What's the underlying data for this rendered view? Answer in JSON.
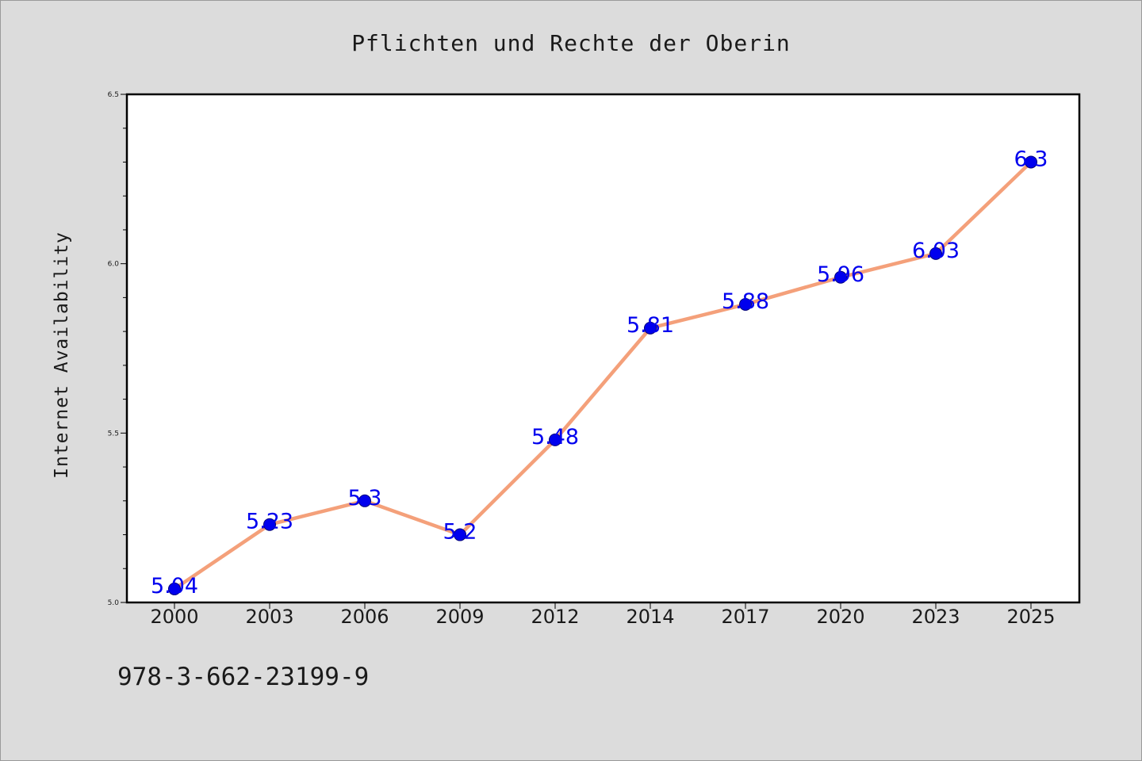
{
  "chart_data": {
    "type": "line",
    "title": "Pflichten und Rechte der Oberin",
    "xlabel": "",
    "ylabel": "Internet Availability",
    "categories": [
      "2000",
      "2003",
      "2006",
      "2009",
      "2012",
      "2014",
      "2017",
      "2020",
      "2023",
      "2025"
    ],
    "series": [
      {
        "values": [
          5.04,
          5.23,
          5.3,
          5.2,
          5.48,
          5.81,
          5.88,
          5.96,
          6.03,
          6.3
        ],
        "data_labels": [
          "5.04",
          "5.23",
          "5.3",
          "5.2",
          "5.48",
          "5.81",
          "5.88",
          "5.96",
          "6.03",
          "6.3"
        ],
        "line_color": "#f4a07a",
        "marker_color": "#0000ee"
      }
    ],
    "ylim": [
      5.0,
      6.5
    ],
    "yticks": [
      "5.0",
      "5.5",
      "6.0",
      "6.5"
    ],
    "legend": "none",
    "grid": false
  },
  "footer": {
    "isbn": "978-3-662-23199-9"
  },
  "colors": {
    "background": "#dcdcdc",
    "plot_background": "#ffffff",
    "line": "#f4a07a",
    "marker": "#0000ee",
    "data_label": "#0000ee"
  }
}
